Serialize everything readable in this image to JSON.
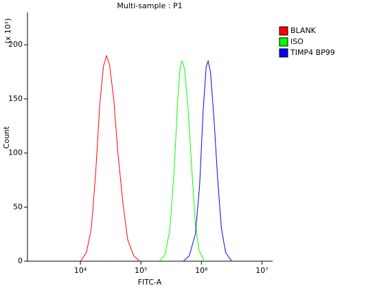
{
  "chart_data": {
    "type": "line",
    "title": "Multi-sample : P1",
    "x_label": "FITC-A",
    "y_label": "Count",
    "y_multiplier": "(x 10¹)",
    "log_x": true,
    "xlim": [
      1334,
      15000000
    ],
    "ylim": [
      0,
      230
    ],
    "xticks": [
      {
        "value": 10000,
        "label": "10⁴"
      },
      {
        "value": 100000,
        "label": "10⁵"
      },
      {
        "value": 1000000,
        "label": "10⁶"
      },
      {
        "value": 10000000,
        "label": "10⁷"
      }
    ],
    "yticks": [
      0,
      50,
      100,
      150,
      200
    ],
    "legend": "right",
    "series": [
      {
        "name": "BLANK",
        "color": "#ff0000",
        "x": [
          10000,
          12600,
          15100,
          17800,
          20900,
          24000,
          26900,
          30200,
          35500,
          41700,
          50100,
          60300,
          75900,
          95500
        ],
        "values": [
          0,
          8,
          30,
          80,
          145,
          180,
          190,
          182,
          150,
          100,
          55,
          20,
          5,
          0
        ]
      },
      {
        "name": "ISO",
        "color": "#00ff00",
        "x": [
          200000,
          251000,
          302000,
          355000,
          407000,
          447000,
          479000,
          525000,
          603000,
          692000,
          794000,
          912000,
          1120000
        ],
        "values": [
          0,
          6,
          30,
          85,
          150,
          180,
          185,
          178,
          140,
          85,
          35,
          10,
          0
        ]
      },
      {
        "name": "TIMP4 BP99",
        "color": "#0000ff",
        "x": [
          501000,
          631000,
          794000,
          933000,
          1070000,
          1200000,
          1290000,
          1410000,
          1620000,
          1860000,
          2140000,
          2510000,
          3160000
        ],
        "values": [
          0,
          5,
          25,
          70,
          140,
          180,
          185,
          175,
          130,
          75,
          30,
          8,
          0
        ]
      }
    ]
  }
}
